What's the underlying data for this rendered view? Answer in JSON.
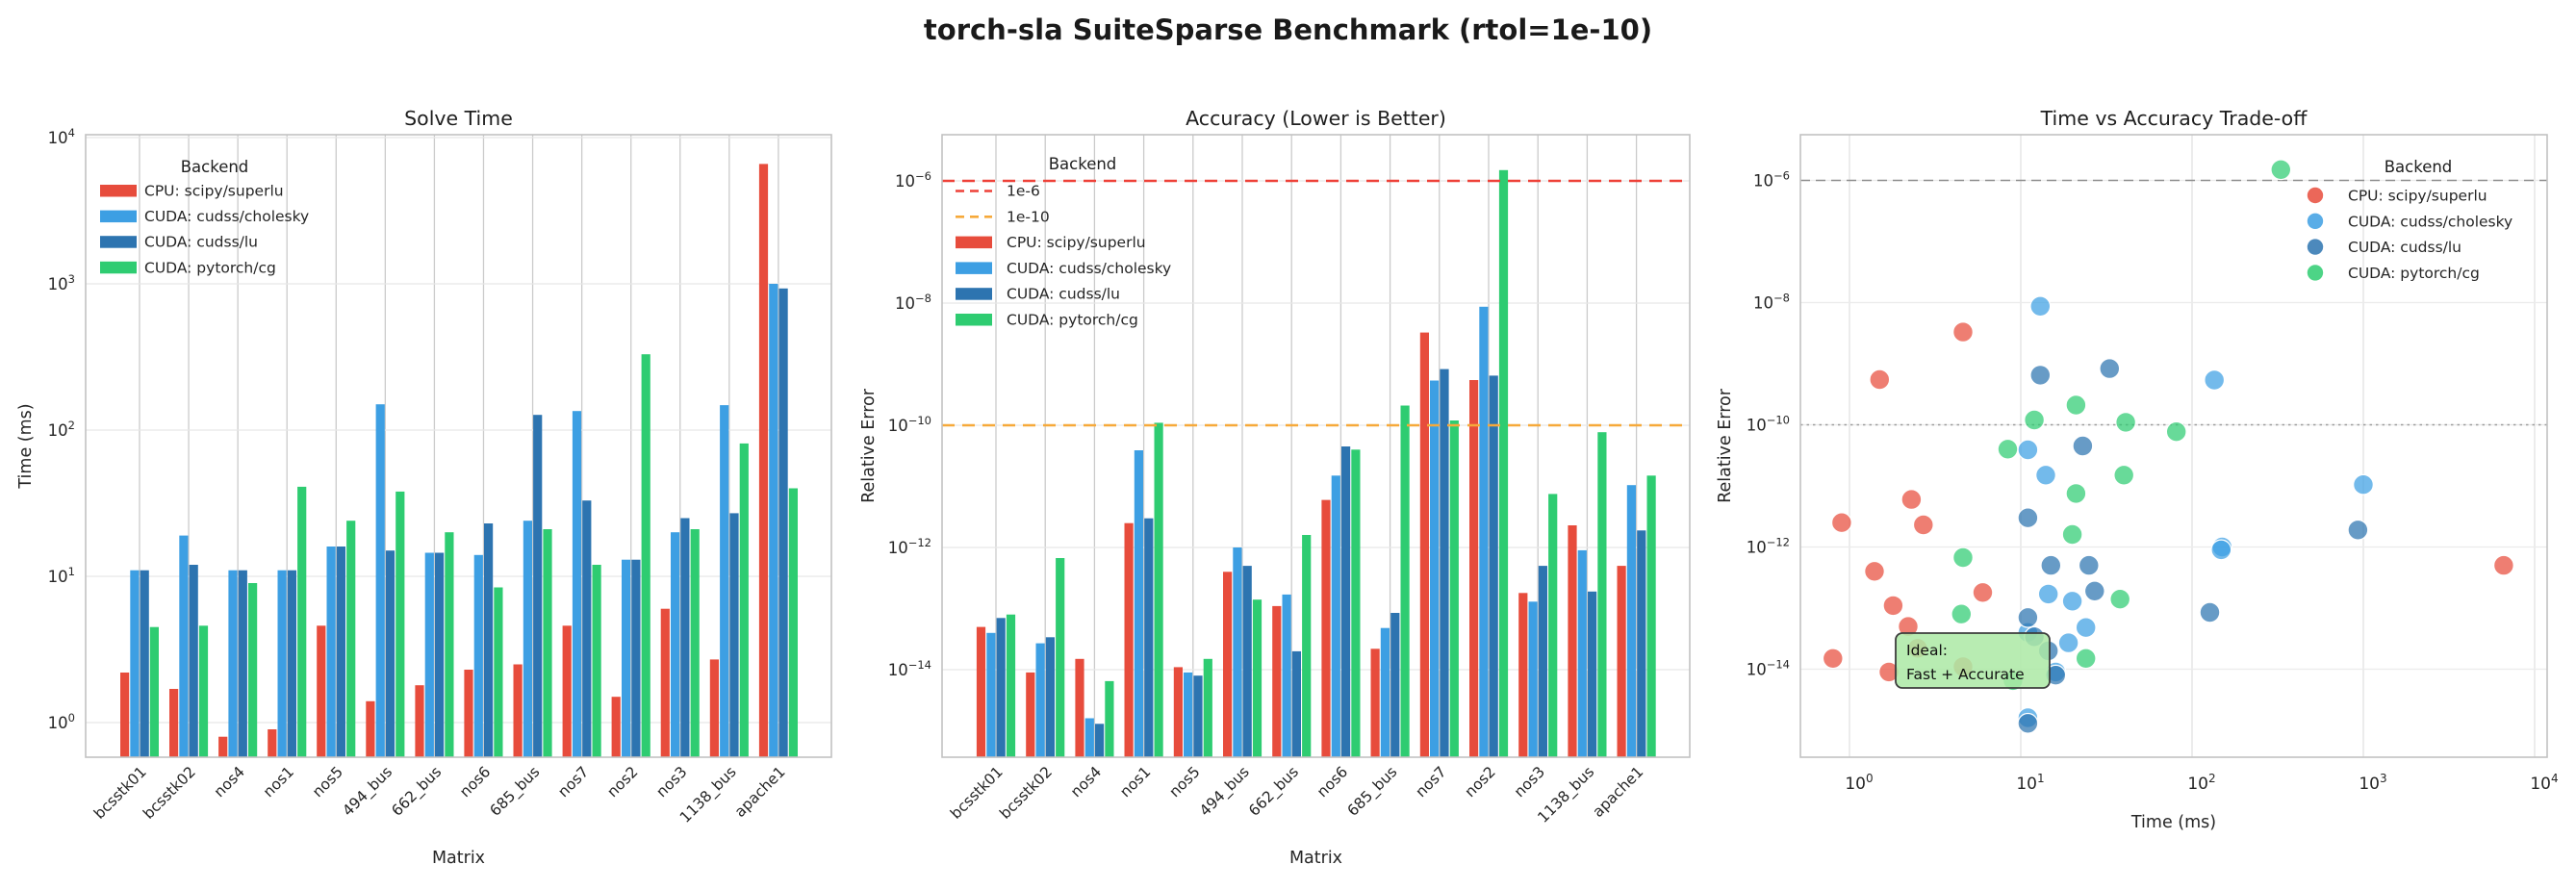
{
  "header": {
    "title": "torch-sla SuiteSparse Benchmark (rtol=1e-10)"
  },
  "palette": {
    "cpu_red": "#e74c3c",
    "cuda_cholesky_blue": "#3d9fe3",
    "cuda_lu_blue": "#2d74b0",
    "cuda_cg_green": "#2ecc71",
    "ref_red": "#ee4138",
    "ref_orange": "#f6a93a",
    "ref_gray_dashed": "#8e8e8e",
    "ref_gray_dotted": "#9c9c9c",
    "annotation_fill": "#ace9a4",
    "annotation_border": "#3c3c3c"
  },
  "backends": [
    "CPU: scipy/superlu",
    "CUDA: cudss/cholesky",
    "CUDA: cudss/lu",
    "CUDA: pytorch/cg"
  ],
  "chart_data": [
    {
      "type": "bar",
      "title": "Solve Time",
      "xlabel": "Matrix",
      "ylabel": "Time (ms)",
      "yscale": "log",
      "ylim": [
        0.55,
        10700
      ],
      "yticks": [
        1,
        10,
        100,
        1000,
        10000
      ],
      "grid": true,
      "legend_title": "Backend",
      "legend_position": "upper left",
      "categories": [
        "bcsstk01",
        "bcsstk02",
        "nos4",
        "nos1",
        "nos5",
        "494_bus",
        "662_bus",
        "nos6",
        "685_bus",
        "nos7",
        "nos2",
        "nos3",
        "1138_bus",
        "apache1"
      ],
      "series": [
        {
          "name": "CPU: scipy/superlu",
          "color": "#e74c3c",
          "values": [
            2.2,
            1.7,
            0.8,
            0.9,
            4.6,
            1.4,
            1.8,
            2.3,
            2.5,
            4.6,
            1.5,
            6.0,
            2.7,
            6600
          ]
        },
        {
          "name": "CUDA: cudss/cholesky",
          "color": "#3d9fe3",
          "values": [
            11,
            19,
            11,
            11,
            16,
            150,
            14.5,
            14,
            24,
            135,
            13,
            20,
            148,
            1000
          ]
        },
        {
          "name": "CUDA: cudss/lu",
          "color": "#2d74b0",
          "values": [
            11,
            12,
            11,
            11,
            16,
            15,
            14.5,
            23,
            127,
            33,
            13,
            25,
            27,
            930
          ]
        },
        {
          "name": "CUDA: pytorch/cg",
          "color": "#2ecc71",
          "values": [
            4.5,
            4.6,
            9,
            41,
            24,
            38,
            20,
            8.4,
            21,
            12,
            330,
            21,
            81,
            40
          ]
        }
      ]
    },
    {
      "type": "bar",
      "title": "Accuracy (Lower is Better)",
      "xlabel": "Matrix",
      "ylabel": "Relative Error",
      "yscale": "log",
      "ylim": [
        3.5e-16,
        5.8e-06
      ],
      "yticks": [
        1e-06,
        1e-08,
        1e-10,
        1e-12,
        1e-14
      ],
      "grid": true,
      "legend_title": "Backend",
      "legend_position": "upper left",
      "reference_lines": [
        {
          "label": "1e-6",
          "value": 1e-06,
          "color": "#ee4138",
          "style": "dashed"
        },
        {
          "label": "1e-10",
          "value": 1e-10,
          "color": "#f6a93a",
          "style": "dashed"
        }
      ],
      "categories": [
        "bcsstk01",
        "bcsstk02",
        "nos4",
        "nos1",
        "nos5",
        "494_bus",
        "662_bus",
        "nos6",
        "685_bus",
        "nos7",
        "nos2",
        "nos3",
        "1138_bus",
        "apache1"
      ],
      "series": [
        {
          "name": "CPU: scipy/superlu",
          "color": "#e74c3c",
          "values": [
            5e-14,
            9e-15,
            1.5e-14,
            2.5e-12,
            1.1e-14,
            4e-13,
            1.1e-13,
            6e-12,
            2.2e-14,
            3.3e-09,
            5.5e-10,
            1.8e-13,
            2.3e-12,
            5e-13
          ]
        },
        {
          "name": "CUDA: cudss/cholesky",
          "color": "#3d9fe3",
          "values": [
            4e-14,
            2.7e-14,
            1.6e-15,
            3.9e-11,
            9e-15,
            1e-12,
            1.7e-13,
            1.5e-11,
            4.8e-14,
            5.4e-10,
            8.7e-09,
            1.3e-13,
            9e-13,
            1.05e-11
          ]
        },
        {
          "name": "CUDA: cudss/lu",
          "color": "#2d74b0",
          "values": [
            7e-14,
            3.4e-14,
            1.3e-15,
            3e-12,
            8e-15,
            5e-13,
            2e-14,
            4.5e-11,
            8.5e-14,
            8.3e-10,
            6.5e-10,
            5e-13,
            1.9e-13,
            1.9e-12
          ]
        },
        {
          "name": "CUDA: pytorch/cg",
          "color": "#2ecc71",
          "values": [
            8e-14,
            6.7e-13,
            6.5e-15,
            1.1e-10,
            1.5e-14,
            1.4e-13,
            1.6e-12,
            4e-11,
            2.1e-10,
            1.2e-10,
            1.5e-06,
            7.5e-12,
            7.7e-11,
            1.5e-11
          ]
        }
      ]
    },
    {
      "type": "scatter",
      "title": "Time vs Accuracy Trade-off",
      "xlabel": "Time (ms)",
      "ylabel": "Relative Error",
      "xscale": "log",
      "yscale": "log",
      "xlim": [
        0.52,
        12000
      ],
      "ylim": [
        3.5e-16,
        5.8e-06
      ],
      "xticks": [
        1,
        10,
        100,
        1000,
        10000
      ],
      "yticks": [
        1e-06,
        1e-08,
        1e-10,
        1e-12,
        1e-14
      ],
      "grid": true,
      "legend_title": "Backend",
      "legend_position": "upper right",
      "reference_lines": [
        {
          "value": 1e-06,
          "color": "#8e8e8e",
          "style": "dashed"
        },
        {
          "value": 1e-10,
          "color": "#9c9c9c",
          "style": "dotted"
        }
      ],
      "annotation": {
        "lines": [
          "Ideal:",
          "Fast + Accurate"
        ],
        "fill": "#ace9a4",
        "border": "#3c3c3c"
      },
      "series": [
        {
          "name": "CPU: scipy/superlu",
          "color": "#e74c3c",
          "points": [
            [
              2.2,
              5e-14
            ],
            [
              1.7,
              9e-15
            ],
            [
              0.8,
              1.5e-14
            ],
            [
              0.9,
              2.5e-12
            ],
            [
              4.6,
              1.1e-14
            ],
            [
              1.4,
              4e-13
            ],
            [
              1.8,
              1.1e-13
            ],
            [
              2.3,
              6e-12
            ],
            [
              2.5,
              2.2e-14
            ],
            [
              4.6,
              3.3e-09
            ],
            [
              1.5,
              5.5e-10
            ],
            [
              6.0,
              1.8e-13
            ],
            [
              2.7,
              2.3e-12
            ],
            [
              6600,
              5e-13
            ]
          ]
        },
        {
          "name": "CUDA: cudss/cholesky",
          "color": "#3d9fe3",
          "points": [
            [
              11,
              4e-14
            ],
            [
              19,
              2.7e-14
            ],
            [
              11,
              1.6e-15
            ],
            [
              11,
              3.9e-11
            ],
            [
              16,
              9e-15
            ],
            [
              150,
              1e-12
            ],
            [
              14.5,
              1.7e-13
            ],
            [
              14,
              1.5e-11
            ],
            [
              24,
              4.8e-14
            ],
            [
              135,
              5.4e-10
            ],
            [
              13,
              8.7e-09
            ],
            [
              20,
              1.3e-13
            ],
            [
              148,
              9e-13
            ],
            [
              1000,
              1.05e-11
            ]
          ]
        },
        {
          "name": "CUDA: cudss/lu",
          "color": "#2d74b0",
          "points": [
            [
              11,
              7e-14
            ],
            [
              12,
              3.4e-14
            ],
            [
              11,
              1.3e-15
            ],
            [
              11,
              3e-12
            ],
            [
              16,
              8e-15
            ],
            [
              15,
              5e-13
            ],
            [
              14.5,
              2e-14
            ],
            [
              23,
              4.5e-11
            ],
            [
              127,
              8.5e-14
            ],
            [
              33,
              8.3e-10
            ],
            [
              13,
              6.5e-10
            ],
            [
              25,
              5e-13
            ],
            [
              27,
              1.9e-13
            ],
            [
              930,
              1.9e-12
            ]
          ]
        },
        {
          "name": "CUDA: pytorch/cg",
          "color": "#2ecc71",
          "points": [
            [
              4.5,
              8e-14
            ],
            [
              4.6,
              6.7e-13
            ],
            [
              9,
              6.5e-15
            ],
            [
              41,
              1.1e-10
            ],
            [
              24,
              1.5e-14
            ],
            [
              38,
              1.4e-13
            ],
            [
              20,
              1.6e-12
            ],
            [
              8.4,
              4e-11
            ],
            [
              21,
              2.1e-10
            ],
            [
              12,
              1.2e-10
            ],
            [
              330,
              1.5e-06
            ],
            [
              21,
              7.5e-12
            ],
            [
              81,
              7.7e-11
            ],
            [
              40,
              1.5e-11
            ]
          ]
        }
      ]
    }
  ]
}
